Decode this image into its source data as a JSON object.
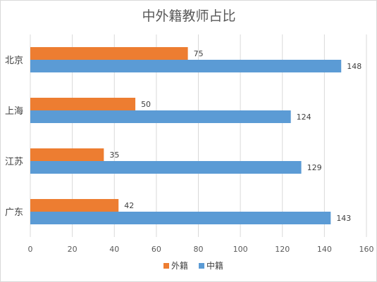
{
  "chart_data": {
    "type": "bar",
    "orientation": "horizontal",
    "title": "中外籍教师占比",
    "categories": [
      "北京",
      "上海",
      "江苏",
      "广东"
    ],
    "series": [
      {
        "name": "外籍",
        "color": "#ED7D31",
        "values": [
          75,
          50,
          35,
          42
        ]
      },
      {
        "name": "中籍",
        "color": "#5B9BD5",
        "values": [
          148,
          124,
          129,
          143
        ]
      }
    ],
    "xlim": [
      0,
      160
    ],
    "xticks": [
      "0",
      "20",
      "40",
      "60",
      "80",
      "100",
      "120",
      "140",
      "160"
    ],
    "grid": true,
    "legend": "bottom"
  }
}
